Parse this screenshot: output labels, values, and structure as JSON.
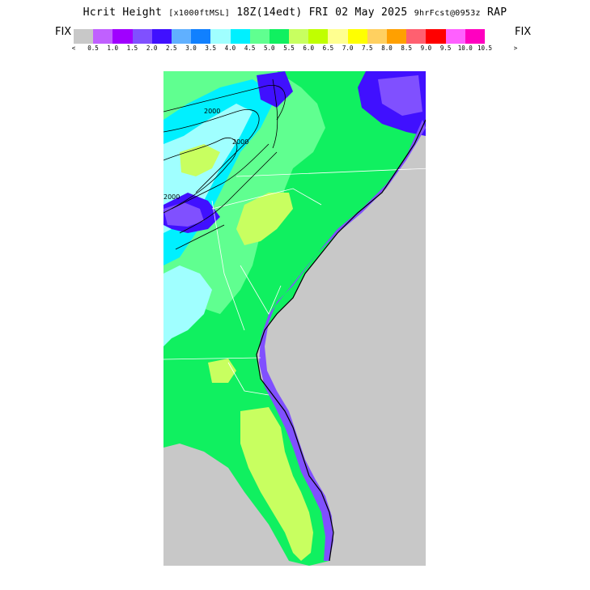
{
  "header": {
    "title_main": "Hcrit Height",
    "title_units": "[x1000ftMSL]",
    "title_time": "18Z(14edt) FRI 02 May 2025",
    "title_fcst": "9hrFcst@0953z",
    "title_model": "RAP",
    "fix_left": "FIX",
    "fix_right": "FIX"
  },
  "legend": {
    "colors": [
      "#c8c8c8",
      "#c060ff",
      "#a000ff",
      "#8050ff",
      "#4010ff",
      "#60b0ff",
      "#1080ff",
      "#a0ffff",
      "#00f0ff",
      "#60ff90",
      "#10f060",
      "#c8ff60",
      "#c0ff00",
      "#ffff90",
      "#ffff00",
      "#ffd060",
      "#ffa000",
      "#ff6070",
      "#ff0000",
      "#ff60ff",
      "#ff00c0"
    ],
    "labels": [
      "<",
      "0.5",
      "1.0",
      "1.5",
      "2.0",
      "2.5",
      "3.0",
      "3.5",
      "4.0",
      "4.5",
      "5.0",
      "5.5",
      "6.0",
      "6.5",
      "7.0",
      "7.5",
      "8.0",
      "8.5",
      "9.0",
      "9.5",
      "10.0",
      "10.5",
      ">"
    ]
  },
  "map": {
    "region": "Southeastern United States",
    "land_gray": "#c8c8c8",
    "contour_labels": [
      "2000",
      "2000",
      "2000"
    ]
  }
}
